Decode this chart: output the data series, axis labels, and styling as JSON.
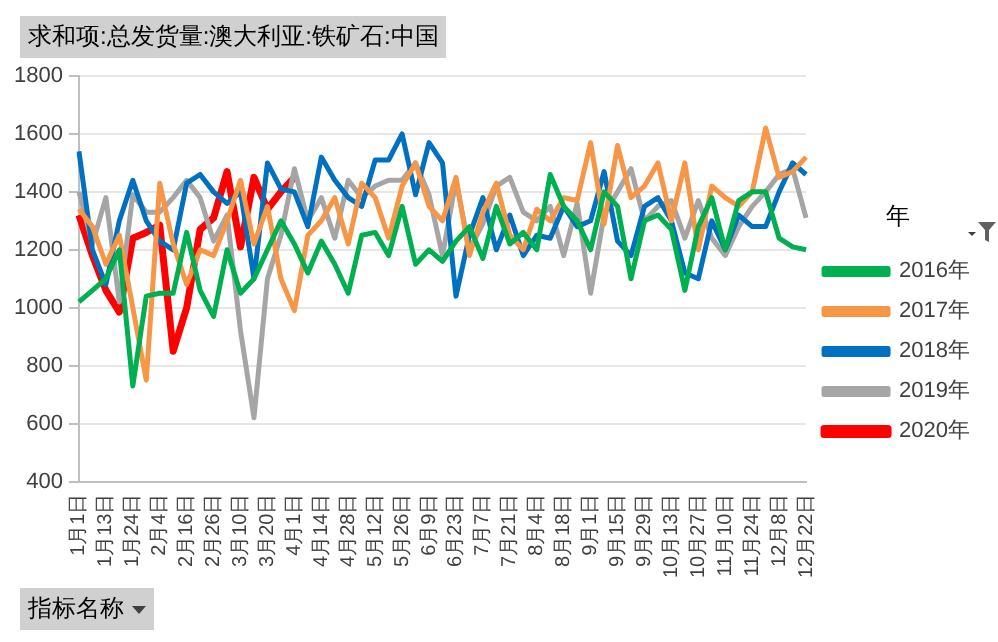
{
  "chart_data": {
    "type": "line",
    "title": "求和项:总发货量:澳大利亚:铁矿石:中国",
    "legend_title": "年",
    "annotations": [
      "指标名称"
    ],
    "categories": [
      "1月1日",
      null,
      "1月13日",
      null,
      "1月24日",
      null,
      "2月4日",
      null,
      "2月16日",
      null,
      "2月26日",
      null,
      "3月10日",
      null,
      "3月20日",
      null,
      "4月1日",
      null,
      "4月14日",
      null,
      "4月28日",
      null,
      "5月12日",
      null,
      "5月26日",
      null,
      "6月9日",
      null,
      "6月23日",
      null,
      "7月7日",
      null,
      "7月21日",
      null,
      "8月4日",
      null,
      "8月18日",
      null,
      "9月1日",
      null,
      "9月15日",
      null,
      "9月29日",
      null,
      "10月13日",
      null,
      "10月27日",
      null,
      "11月10日",
      null,
      "11月24日",
      null,
      "12月8日",
      null,
      "12月22日"
    ],
    "series": [
      {
        "name": "2016年",
        "color": "#00b050",
        "values": [
          1020,
          1060,
          1100,
          1200,
          730,
          1040,
          1050,
          1050,
          1260,
          1060,
          970,
          1200,
          1050,
          1100,
          1200,
          1300,
          1220,
          1120,
          1230,
          1150,
          1050,
          1250,
          1260,
          1180,
          1350,
          1150,
          1200,
          1160,
          1230,
          1280,
          1170,
          1350,
          1220,
          1260,
          1200,
          1460,
          1350,
          1300,
          1200,
          1400,
          1350,
          1100,
          1300,
          1320,
          1270,
          1060,
          1280,
          1380,
          1200,
          1370,
          1400,
          1400,
          1240,
          1210,
          1200
        ]
      },
      {
        "name": "2017年",
        "color": "#f79646",
        "values": [
          1340,
          1280,
          1150,
          1250,
          1000,
          750,
          1430,
          1220,
          1080,
          1200,
          1180,
          1300,
          1440,
          1220,
          1350,
          1100,
          990,
          1250,
          1300,
          1380,
          1220,
          1430,
          1380,
          1240,
          1420,
          1500,
          1350,
          1300,
          1450,
          1180,
          1330,
          1430,
          1250,
          1200,
          1340,
          1300,
          1380,
          1370,
          1570,
          1290,
          1560,
          1380,
          1420,
          1500,
          1300,
          1500,
          1200,
          1420,
          1380,
          1350,
          1400,
          1620,
          1450,
          1470,
          1520
        ]
      },
      {
        "name": "2018年",
        "color": "#0070c0",
        "values": [
          1540,
          1200,
          1080,
          1300,
          1440,
          1300,
          1230,
          1200,
          1430,
          1460,
          1400,
          1360,
          1400,
          1100,
          1500,
          1410,
          1400,
          1280,
          1520,
          1440,
          1380,
          1350,
          1510,
          1510,
          1600,
          1390,
          1570,
          1500,
          1040,
          1250,
          1380,
          1200,
          1320,
          1180,
          1250,
          1240,
          1350,
          1280,
          1300,
          1470,
          1230,
          1180,
          1350,
          1380,
          1300,
          1120,
          1100,
          1300,
          1200,
          1320,
          1280,
          1280,
          1400,
          1500,
          1460
        ]
      },
      {
        "name": "2019年",
        "color": "#a5a5a5",
        "values": [
          1400,
          1220,
          1380,
          1020,
          1390,
          1330,
          1330,
          1380,
          1440,
          1380,
          1230,
          1320,
          920,
          620,
          1100,
          1250,
          1480,
          1300,
          1380,
          1240,
          1440,
          1380,
          1420,
          1440,
          1440,
          1500,
          1390,
          1180,
          1440,
          1200,
          1290,
          1420,
          1450,
          1330,
          1300,
          1350,
          1180,
          1360,
          1050,
          1320,
          1400,
          1480,
          1300,
          1350,
          1370,
          1240,
          1370,
          1240,
          1180,
          1280,
          1350,
          1400,
          1460,
          1480,
          1310
        ]
      },
      {
        "name": "2020年",
        "color": "#ff0000",
        "values": [
          1320,
          1180,
          1060,
          985,
          1240,
          1260,
          1285,
          850,
          1000,
          1270,
          1310,
          1470,
          1210,
          1450,
          1340,
          1400,
          1450,
          null,
          null,
          null,
          null,
          null,
          null,
          null,
          null,
          null,
          null,
          null,
          null,
          null,
          null,
          null,
          null,
          null,
          null,
          null,
          null,
          null,
          null,
          null,
          null,
          null,
          null,
          null,
          null,
          null,
          null,
          null,
          null,
          null,
          null,
          null,
          null,
          null,
          null
        ]
      }
    ],
    "ylim": [
      400,
      1800
    ],
    "yticks": [
      400,
      600,
      800,
      1000,
      1200,
      1400,
      1600,
      1800
    ],
    "grid": "y",
    "legend": "right",
    "marker": "none",
    "line_style": "solid"
  }
}
